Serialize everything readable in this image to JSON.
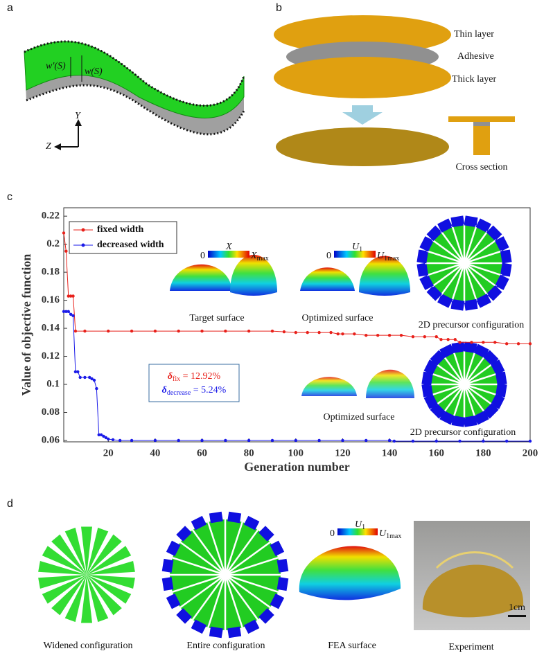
{
  "panel_labels": [
    "a",
    "b",
    "c",
    "d"
  ],
  "panel_a": {
    "w_prime": "w'(S)",
    "w": "w(S)",
    "axis_y": "Y",
    "axis_z": "Z"
  },
  "panel_b": {
    "layers": [
      "Thin layer",
      "Adhesive",
      "Thick layer"
    ],
    "cross_section": "Cross section"
  },
  "chart_data": {
    "type": "line",
    "xlabel": "Generation number",
    "ylabel": "Value of objective function",
    "xlim": [
      1,
      200
    ],
    "xticks": [
      20,
      40,
      60,
      80,
      100,
      120,
      140,
      160,
      180,
      200
    ],
    "ylim": [
      0.059,
      0.226
    ],
    "yticks": [
      0.06,
      0.08,
      0.1,
      0.12,
      0.14,
      0.16,
      0.18,
      0.2,
      0.22
    ],
    "legend": "upper left",
    "series": [
      {
        "name": "fixed width",
        "color": "#e8201a",
        "x": [
          1,
          2,
          3,
          4,
          5,
          6,
          10,
          20,
          30,
          40,
          50,
          60,
          70,
          80,
          90,
          95,
          100,
          105,
          110,
          115,
          118,
          120,
          125,
          130,
          135,
          140,
          145,
          150,
          155,
          160,
          162,
          165,
          168,
          170,
          175,
          180,
          185,
          190,
          195,
          200
        ],
        "values": [
          0.208,
          0.195,
          0.163,
          0.163,
          0.163,
          0.138,
          0.138,
          0.138,
          0.138,
          0.138,
          0.138,
          0.138,
          0.138,
          0.138,
          0.138,
          0.1375,
          0.137,
          0.137,
          0.137,
          0.137,
          0.136,
          0.136,
          0.136,
          0.135,
          0.135,
          0.135,
          0.135,
          0.134,
          0.134,
          0.134,
          0.132,
          0.132,
          0.132,
          0.13,
          0.13,
          0.13,
          0.13,
          0.129,
          0.129,
          0.129
        ]
      },
      {
        "name": "decreased width",
        "color": "#1a1ae8",
        "x": [
          1,
          2,
          3,
          4,
          5,
          6,
          7,
          8,
          10,
          12,
          13,
          14,
          15,
          16,
          17,
          18,
          19,
          20,
          22,
          25,
          30,
          40,
          50,
          60,
          70,
          80,
          90,
          100,
          110,
          120,
          130,
          140,
          142,
          150,
          160,
          170,
          180,
          190,
          200
        ],
        "values": [
          0.152,
          0.152,
          0.152,
          0.15,
          0.149,
          0.109,
          0.109,
          0.105,
          0.105,
          0.105,
          0.104,
          0.103,
          0.097,
          0.064,
          0.064,
          0.063,
          0.062,
          0.061,
          0.0605,
          0.06,
          0.06,
          0.06,
          0.06,
          0.06,
          0.06,
          0.06,
          0.06,
          0.06,
          0.06,
          0.06,
          0.06,
          0.06,
          0.0595,
          0.0595,
          0.0595,
          0.0595,
          0.0595,
          0.0595,
          0.0595
        ]
      }
    ],
    "annotations": {
      "target_surface": "Target surface",
      "optimized_fixed": "Optimized surface",
      "precursor_fixed": "2D precursor configuration",
      "optimized_decreased": "Optimized surface",
      "precursor_decreased": "2D precursor configuration",
      "colorbar_x": {
        "zero": "0",
        "name": "X",
        "max": "X",
        "max_sub": "max"
      },
      "colorbar_u": {
        "zero": "0",
        "name": "U",
        "name_sub": "1",
        "max": "U",
        "max_sub": "1max"
      },
      "delta_fix": {
        "symbol": "δ",
        "sub": "fix",
        "rest": " = 12.92%"
      },
      "delta_decrease": {
        "symbol": "δ",
        "sub": "decrease",
        "rest": " = 5.24%"
      }
    }
  },
  "panel_d": {
    "captions": [
      "Widened configuration",
      "Entire configuration",
      "FEA surface",
      "Experiment"
    ],
    "colorbar_u": {
      "zero": "0",
      "name": "U",
      "name_sub": "1",
      "max": "U",
      "max_sub": "1max"
    },
    "scale_bar": "1cm"
  }
}
